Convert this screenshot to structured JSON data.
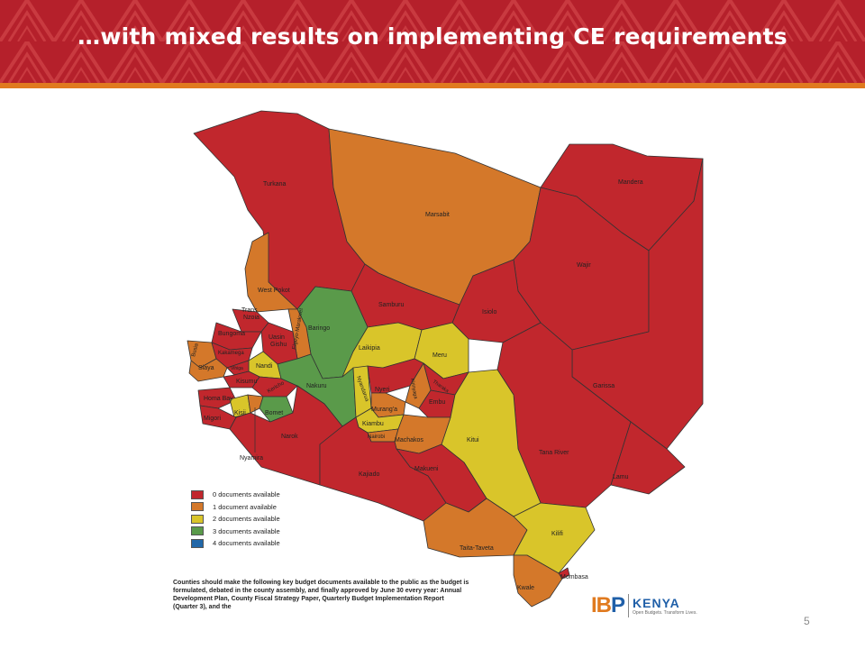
{
  "slide": {
    "title": "…with mixed results on implementing CE requirements",
    "page_number": "5"
  },
  "colors": {
    "banner": "#b5202b",
    "stripe": "#e07a1f",
    "zero": "#c1272d",
    "one": "#d4782a",
    "two": "#d9c52a",
    "three": "#5a9a4a",
    "four": "#2167a8"
  },
  "legend": {
    "items": [
      {
        "label": "0 documents available",
        "color": "#c1272d"
      },
      {
        "label": "1 document available",
        "color": "#d4782a"
      },
      {
        "label": "2 documents available",
        "color": "#d9c52a"
      },
      {
        "label": "3 documents available",
        "color": "#5a9a4a"
      },
      {
        "label": "4 documents available",
        "color": "#2167a8"
      }
    ]
  },
  "counties": {
    "turkana": "Turkana",
    "marsabit": "Marsabit",
    "mandera": "Mandera",
    "wajir": "Wajir",
    "west_pokot": "West Pokot",
    "samburu": "Samburu",
    "isiolo": "Isiolo",
    "trans_nzoia": "Trans\nNzoia",
    "baringo": "Baringo",
    "bungoma": "Bungoma",
    "uasin_gishu": "Uasin\nGishu",
    "elgeyo_marakwet": "Elgeyo-Marakwet",
    "busia": "Busia",
    "kakamega": "Kakamega",
    "laikipia": "Laikipia",
    "meru": "Meru",
    "siaya": "Siaya",
    "nandi": "Nandi",
    "vihiga": "Vihiga",
    "kisumu": "Kisumu",
    "kericho": "Kericho",
    "nakuru": "Nakuru",
    "nyandarua": "Nyandarua",
    "nyeri": "Nyeri",
    "kirinyaga": "Kirinyaga",
    "tharaka": "Tharaka",
    "embu": "Embu",
    "garissa": "Garissa",
    "homa_bay": "Homa Bay",
    "kisii": "Kisii",
    "bomet": "Bomet",
    "muranga": "Murang'a",
    "migori": "Migori",
    "kiambu": "Kiambu",
    "kitui": "Kitui",
    "nairobi": "Nairobi",
    "narok": "Narok",
    "machakos": "Machakos",
    "nyamira": "Nyamira",
    "tana_river": "Tana River",
    "kajiado": "Kajiado",
    "makueni": "Makueni",
    "lamu": "Lamu",
    "kilifi": "Kilifi",
    "taita_taveta": "Taita-Taveta",
    "mombasa": "Mombasa",
    "kwale": "Kwale"
  },
  "footnote": "Counties should make the following key budget documents available to the public as the budget is formulated, debated in the county assembly, and finally approved by June 30 every year: Annual Development Plan, County Fiscal Strategy Paper, Quarterly Budget Implementation Report (Quarter 3), and the",
  "logo": {
    "ibp_left": "IB",
    "ibp_right": "P",
    "kenya": "KENYA",
    "tagline": "Open Budgets. Transform Lives."
  }
}
